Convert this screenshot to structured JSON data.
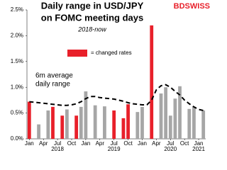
{
  "chart_data": {
    "type": "bar",
    "title": [
      "Daily range in USD/JPY",
      "on FOMC  meeting days"
    ],
    "subtitle": "2018-now",
    "logo": "BDSWISS",
    "legend_label": "= changed rates",
    "legend_color": "#e8202a",
    "annotation": [
      "6m average",
      "daily range"
    ],
    "categories": [
      "Jan",
      null,
      null,
      "Apr",
      null,
      null,
      "Jul",
      null,
      null,
      "Oct",
      null,
      null,
      "Jan",
      null,
      null,
      "Apr",
      null,
      null,
      "Jul",
      null,
      null,
      "Oct",
      null,
      null,
      "Jan",
      null,
      null,
      "Apr",
      null,
      null,
      "Jul",
      null,
      null,
      "Oct",
      null,
      null,
      "Jan",
      null
    ],
    "year_labels": [
      "2018",
      "2019",
      "2020",
      "2021"
    ],
    "values": [
      0.72,
      null,
      0.28,
      null,
      0.55,
      0.62,
      null,
      0.45,
      0.57,
      null,
      0.45,
      0.62,
      0.92,
      null,
      0.65,
      null,
      0.63,
      null,
      0.55,
      null,
      0.4,
      0.67,
      null,
      0.52,
      0.62,
      null,
      2.2,
      null,
      0.88,
      1.0,
      0.45,
      0.78,
      1.02,
      null,
      0.58,
      0.62,
      null,
      0.55
    ],
    "colors": [
      "#e8202a",
      null,
      "#a6a6a6",
      null,
      "#a6a6a6",
      "#e8202a",
      null,
      "#e8202a",
      "#a6a6a6",
      null,
      "#e8202a",
      "#a6a6a6",
      "#a6a6a6",
      null,
      "#a6a6a6",
      null,
      "#a6a6a6",
      null,
      "#e8202a",
      null,
      "#e8202a",
      "#e8202a",
      null,
      "#a6a6a6",
      "#a6a6a6",
      null,
      "#e8202a",
      null,
      "#a6a6a6",
      "#a6a6a6",
      "#a6a6a6",
      "#a6a6a6",
      "#a6a6a6",
      null,
      "#a6a6a6",
      "#a6a6a6",
      null,
      "#a6a6a6"
    ],
    "line_values": [
      0.72,
      0.71,
      0.7,
      0.69,
      0.68,
      0.67,
      0.66,
      0.65,
      0.65,
      0.66,
      0.68,
      0.72,
      0.78,
      0.82,
      0.82,
      0.8,
      0.79,
      0.78,
      0.77,
      0.75,
      0.73,
      0.7,
      0.68,
      0.67,
      0.66,
      0.66,
      0.75,
      0.95,
      1.03,
      1.05,
      1.0,
      0.92,
      0.85,
      0.75,
      0.68,
      0.62,
      0.57,
      0.55
    ],
    "line_color": "#000000",
    "ylim": [
      0,
      2.5
    ],
    "yticks": [
      {
        "value": 0,
        "label": "0.0%"
      },
      {
        "value": 0.5,
        "label": "0.5%"
      },
      {
        "value": 1,
        "label": "1.0%"
      },
      {
        "value": 1.5,
        "label": "1.5%"
      },
      {
        "value": 2,
        "label": "2.0%"
      },
      {
        "value": 2.5,
        "label": "2.5%"
      }
    ]
  }
}
